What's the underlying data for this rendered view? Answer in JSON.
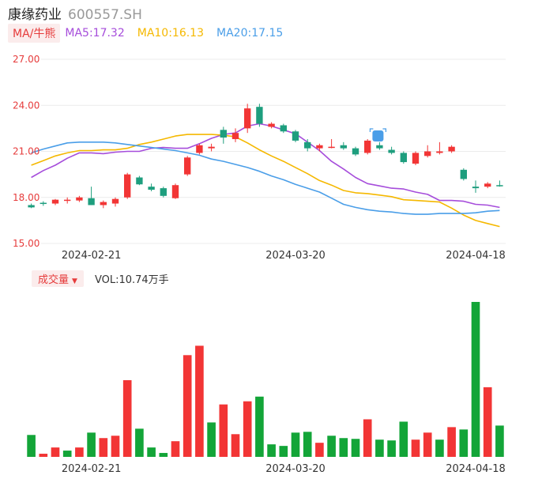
{
  "header": {
    "name": "康缘药业",
    "code": "600557.SH"
  },
  "ma_legend": {
    "label": "MA/牛熊",
    "items": [
      {
        "text": "MA5:17.32",
        "color": "#a64ddb"
      },
      {
        "text": "MA10:16.13",
        "color": "#f5b800"
      },
      {
        "text": "MA20:17.15",
        "color": "#4a9ee8"
      }
    ]
  },
  "volume_legend": {
    "label": "成交量",
    "text": "VOL:10.74万手"
  },
  "colors": {
    "up": "#f23535",
    "down": "#13a538",
    "down_k": "#1e9e7e",
    "axis": "#e63b3b"
  },
  "chart_data": [
    {
      "type": "candlestick",
      "ylim": [
        15,
        27
      ],
      "y_ticks": [
        "27.00",
        "24.00",
        "21.00",
        "18.00",
        "15.00"
      ],
      "x_ticks": [
        {
          "index": 5,
          "label": "2024-02-21"
        },
        {
          "index": 22,
          "label": "2024-03-20"
        },
        {
          "index": 37,
          "label": "2024-04-18"
        }
      ],
      "candles": [
        {
          "o": 17.5,
          "h": 17.6,
          "l": 17.3,
          "c": 17.35
        },
        {
          "o": 17.65,
          "h": 17.75,
          "l": 17.45,
          "c": 17.6
        },
        {
          "o": 17.6,
          "h": 17.9,
          "l": 17.5,
          "c": 17.85
        },
        {
          "o": 17.8,
          "h": 18.0,
          "l": 17.6,
          "c": 17.85
        },
        {
          "o": 17.8,
          "h": 18.1,
          "l": 17.7,
          "c": 18.0
        },
        {
          "o": 17.95,
          "h": 18.7,
          "l": 17.5,
          "c": 17.5
        },
        {
          "o": 17.5,
          "h": 17.8,
          "l": 17.3,
          "c": 17.7
        },
        {
          "o": 17.6,
          "h": 18.0,
          "l": 17.4,
          "c": 17.9
        },
        {
          "o": 18.0,
          "h": 19.6,
          "l": 17.9,
          "c": 19.5
        },
        {
          "o": 19.3,
          "h": 19.4,
          "l": 18.8,
          "c": 18.85
        },
        {
          "o": 18.7,
          "h": 18.9,
          "l": 18.4,
          "c": 18.5
        },
        {
          "o": 18.6,
          "h": 18.7,
          "l": 18.0,
          "c": 18.1
        },
        {
          "o": 17.95,
          "h": 18.9,
          "l": 17.9,
          "c": 18.8
        },
        {
          "o": 19.5,
          "h": 20.7,
          "l": 19.4,
          "c": 20.6
        },
        {
          "o": 20.9,
          "h": 21.5,
          "l": 20.8,
          "c": 21.4
        },
        {
          "o": 21.2,
          "h": 21.5,
          "l": 21.0,
          "c": 21.3
        },
        {
          "o": 22.4,
          "h": 22.6,
          "l": 21.5,
          "c": 21.9
        },
        {
          "o": 21.8,
          "h": 22.5,
          "l": 21.6,
          "c": 22.2
        },
        {
          "o": 22.5,
          "h": 24.1,
          "l": 22.2,
          "c": 23.8
        },
        {
          "o": 23.9,
          "h": 24.1,
          "l": 22.6,
          "c": 22.8
        },
        {
          "o": 22.6,
          "h": 22.9,
          "l": 22.5,
          "c": 22.8
        },
        {
          "o": 22.7,
          "h": 22.8,
          "l": 22.2,
          "c": 22.3
        },
        {
          "o": 22.3,
          "h": 22.4,
          "l": 21.6,
          "c": 21.7
        },
        {
          "o": 21.6,
          "h": 21.8,
          "l": 21.0,
          "c": 21.2
        },
        {
          "o": 21.2,
          "h": 21.5,
          "l": 21.0,
          "c": 21.4
        },
        {
          "o": 21.3,
          "h": 21.8,
          "l": 21.2,
          "c": 21.3
        },
        {
          "o": 21.4,
          "h": 21.6,
          "l": 21.1,
          "c": 21.2
        },
        {
          "o": 21.2,
          "h": 21.3,
          "l": 20.7,
          "c": 20.8
        },
        {
          "o": 20.9,
          "h": 21.8,
          "l": 20.8,
          "c": 21.7
        },
        {
          "o": 21.4,
          "h": 21.6,
          "l": 21.1,
          "c": 21.2
        },
        {
          "o": 21.1,
          "h": 21.3,
          "l": 20.8,
          "c": 20.9
        },
        {
          "o": 20.9,
          "h": 21.0,
          "l": 20.2,
          "c": 20.3
        },
        {
          "o": 20.2,
          "h": 21.0,
          "l": 20.1,
          "c": 20.9
        },
        {
          "o": 20.7,
          "h": 21.4,
          "l": 20.6,
          "c": 21.0
        },
        {
          "o": 20.9,
          "h": 21.6,
          "l": 20.8,
          "c": 21.0
        },
        {
          "o": 21.0,
          "h": 21.4,
          "l": 20.9,
          "c": 21.3
        },
        {
          "o": 19.8,
          "h": 19.9,
          "l": 19.1,
          "c": 19.2
        },
        {
          "o": 18.7,
          "h": 19.1,
          "l": 18.3,
          "c": 18.6
        },
        {
          "o": 18.7,
          "h": 19.0,
          "l": 18.6,
          "c": 18.9
        },
        {
          "o": 18.8,
          "h": 19.1,
          "l": 18.7,
          "c": 18.75
        }
      ],
      "ma_lines": [
        {
          "name": "MA5",
          "values": [
            19.3,
            19.75,
            20.1,
            20.55,
            20.9,
            20.9,
            20.85,
            20.95,
            21.0,
            21.0,
            21.2,
            21.25,
            21.2,
            21.2,
            21.5,
            21.85,
            22.1,
            22.2,
            22.65,
            22.8,
            22.65,
            22.4,
            22.15,
            21.6,
            21.05,
            20.35,
            19.85,
            19.3,
            18.9,
            18.75,
            18.6,
            18.55,
            18.35,
            18.2,
            17.8,
            17.8,
            17.75,
            17.55,
            17.5,
            17.35
          ],
          "color": "#a64ddb"
        },
        {
          "name": "MA10",
          "values": [
            20.1,
            20.4,
            20.7,
            20.9,
            21.05,
            21.05,
            21.1,
            21.1,
            21.2,
            21.45,
            21.6,
            21.8,
            22.0,
            22.1,
            22.1,
            22.1,
            22.05,
            21.95,
            21.55,
            21.1,
            20.7,
            20.35,
            19.95,
            19.55,
            19.1,
            18.8,
            18.45,
            18.3,
            18.25,
            18.15,
            18.05,
            17.85,
            17.8,
            17.75,
            17.7,
            17.3,
            16.85,
            16.5,
            16.3,
            16.1
          ],
          "color": "#f5b800"
        },
        {
          "name": "MA20",
          "values": [
            20.9,
            21.15,
            21.35,
            21.55,
            21.6,
            21.6,
            21.6,
            21.55,
            21.45,
            21.35,
            21.25,
            21.15,
            21.05,
            20.9,
            20.75,
            20.5,
            20.35,
            20.15,
            19.95,
            19.7,
            19.4,
            19.15,
            18.85,
            18.6,
            18.35,
            17.95,
            17.55,
            17.35,
            17.2,
            17.1,
            17.05,
            16.95,
            16.9,
            16.9,
            16.95,
            16.95,
            16.95,
            17.0,
            17.1,
            17.15
          ],
          "color": "#4a9ee8"
        }
      ]
    },
    {
      "type": "bar",
      "series": [
        {
          "values": [
            28,
            4,
            12,
            8,
            12,
            31,
            24,
            27,
            98,
            36,
            12,
            5,
            20,
            130,
            142,
            44,
            67,
            29,
            71,
            77,
            16,
            14,
            31,
            32,
            18,
            27,
            24,
            23,
            48,
            22,
            21,
            45,
            22,
            31,
            22,
            38,
            35,
            198,
            89,
            40
          ]
        }
      ],
      "direction": [
        "down",
        "up",
        "up",
        "down",
        "up",
        "down",
        "up",
        "up",
        "up",
        "down",
        "down",
        "down",
        "up",
        "up",
        "up",
        "down",
        "up",
        "up",
        "up",
        "down",
        "down",
        "down",
        "down",
        "down",
        "up",
        "down",
        "down",
        "down",
        "up",
        "down",
        "down",
        "down",
        "up",
        "up",
        "down",
        "up",
        "down",
        "down",
        "up",
        "down"
      ],
      "ylim": [
        0,
        200
      ],
      "x_ticks": [
        {
          "index": 5,
          "label": "2024-02-21"
        },
        {
          "index": 22,
          "label": "2024-03-20"
        },
        {
          "index": 37,
          "label": "2024-04-18"
        }
      ]
    }
  ]
}
